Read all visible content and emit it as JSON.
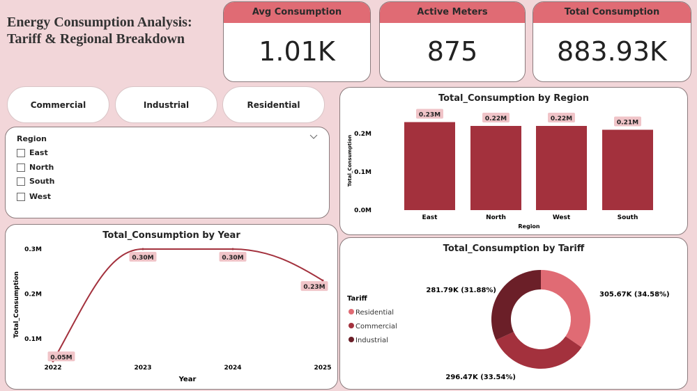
{
  "header": {
    "title_line1": "Energy Consumption Analysis:",
    "title_line2": "Tariff & Regional Breakdown"
  },
  "kpis": [
    {
      "label": "Avg Consumption",
      "value": "1.01K"
    },
    {
      "label": "Active Meters",
      "value": "875"
    },
    {
      "label": "Total Consumption",
      "value": "883.93K"
    }
  ],
  "tariff_buttons": [
    "Commercial",
    "Industrial",
    "Residential"
  ],
  "region_slicer": {
    "title": "Region",
    "options": [
      "East",
      "North",
      "South",
      "West"
    ],
    "chevron_icon": "chevron-down-icon"
  },
  "colors": {
    "accent": "#e06b74",
    "bar": "#a3313d",
    "residential": "#e06b74",
    "commercial": "#a3313d",
    "industrial": "#6b1f28",
    "background": "#f2d6d9"
  },
  "chart_data": [
    {
      "type": "bar",
      "title": "Total_Consumption by Region",
      "xlabel": "Region",
      "ylabel": "Total_Consumption",
      "categories": [
        "East",
        "North",
        "West",
        "South"
      ],
      "values": [
        0.23,
        0.22,
        0.22,
        0.21
      ],
      "data_labels": [
        "0.23M",
        "0.22M",
        "0.22M",
        "0.21M"
      ],
      "yticks": [
        "0.0M",
        "0.1M",
        "0.2M"
      ],
      "ylim": [
        0,
        0.25
      ],
      "unit": "M"
    },
    {
      "type": "line",
      "title": "Total_Consumption by Year",
      "xlabel": "Year",
      "ylabel": "Total_Consumption",
      "x": [
        "2022",
        "2023",
        "2024",
        "2025"
      ],
      "values": [
        0.05,
        0.3,
        0.3,
        0.23
      ],
      "data_labels": [
        "0.05M",
        "0.30M",
        "0.30M",
        "0.23M"
      ],
      "yticks": [
        "0.1M",
        "0.2M",
        "0.3M"
      ],
      "unit": "M"
    },
    {
      "type": "pie",
      "title": "Total_Consumption by Tariff",
      "legend_title": "Tariff",
      "legend_position": "left",
      "donut": true,
      "slices": [
        {
          "name": "Residential",
          "value": 305.67,
          "label": "305.67K (34.58%)",
          "percent": 34.58
        },
        {
          "name": "Commercial",
          "value": 296.47,
          "label": "296.47K (33.54%)",
          "percent": 33.54
        },
        {
          "name": "Industrial",
          "value": 281.79,
          "label": "281.79K (31.88%)",
          "percent": 31.88
        }
      ]
    }
  ]
}
